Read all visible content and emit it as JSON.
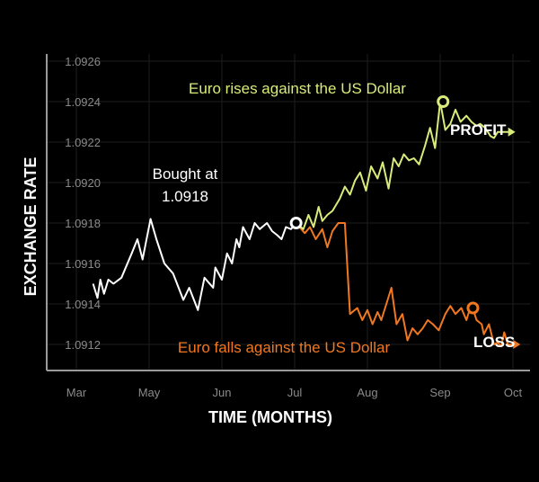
{
  "colors": {
    "background": "#000000",
    "base_line": "#ffffff",
    "profit_line": "#d9ec7a",
    "loss_line": "#f07820",
    "grid": "#1e1e1e",
    "axis": "#9a9a9a"
  },
  "chart_data": {
    "type": "line",
    "xlabel": "TIME (MONTHS)",
    "ylabel": "EXCHANGE RATE",
    "x_ticks": [
      "Mar",
      "May",
      "Jun",
      "Jul",
      "Aug",
      "Sep",
      "Oct"
    ],
    "y_ticks": [
      "1.0926",
      "1.0924",
      "1.0922",
      "1.0920",
      "1.0918",
      "1.0916",
      "1.0914",
      "1.0912"
    ],
    "ylim": [
      1.09108,
      1.0926
    ],
    "grid": true,
    "annotations": {
      "bought_line1": "Bought at",
      "bought_line2": "1.0918",
      "profit_caption": "Euro rises against the US Dollar",
      "loss_caption": "Euro falls against the US Dollar",
      "profit_end": "PROFIT",
      "loss_end": "LOSS"
    },
    "series": [
      {
        "key": "base",
        "x_index": [
          0.23,
          0.29,
          0.33,
          0.38,
          0.44,
          0.51,
          0.62,
          0.76,
          0.84,
          0.91,
          1.02,
          1.1,
          1.21,
          1.33,
          1.47,
          1.55,
          1.67,
          1.76,
          1.88,
          1.91,
          2.0,
          2.07,
          2.14,
          2.2,
          2.24,
          2.29,
          2.38,
          2.45,
          2.52,
          2.62,
          2.69,
          2.76,
          2.82,
          2.88,
          2.95,
          3.02
        ],
        "values": [
          1.0915,
          1.09143,
          1.09152,
          1.09145,
          1.09152,
          1.0915,
          1.09153,
          1.09165,
          1.09172,
          1.09162,
          1.09182,
          1.09172,
          1.0916,
          1.09155,
          1.09142,
          1.09148,
          1.09137,
          1.09153,
          1.09148,
          1.09158,
          1.09152,
          1.09165,
          1.0916,
          1.09172,
          1.09168,
          1.09178,
          1.09172,
          1.0918,
          1.09177,
          1.0918,
          1.09176,
          1.09174,
          1.09172,
          1.09178,
          1.09177,
          1.0918
        ]
      },
      {
        "key": "profit",
        "x_index": [
          3.02,
          3.12,
          3.19,
          3.26,
          3.33,
          3.38,
          3.45,
          3.52,
          3.62,
          3.69,
          3.76,
          3.83,
          3.9,
          3.98,
          4.05,
          4.14,
          4.21,
          4.29,
          4.36,
          4.43,
          4.5,
          4.57,
          4.64,
          4.71,
          4.79,
          4.86,
          4.93,
          5.0,
          5.07,
          5.14,
          5.21,
          5.28,
          5.36,
          5.43,
          5.5,
          5.55,
          5.62,
          5.69,
          5.74,
          5.79,
          5.86
        ],
        "values": [
          1.0918,
          1.09177,
          1.09184,
          1.09178,
          1.09188,
          1.09181,
          1.09184,
          1.09186,
          1.09192,
          1.09198,
          1.09194,
          1.09201,
          1.09205,
          1.09196,
          1.09208,
          1.09202,
          1.0921,
          1.09197,
          1.09212,
          1.09208,
          1.09214,
          1.09211,
          1.09212,
          1.09209,
          1.09218,
          1.09227,
          1.09217,
          1.0924,
          1.09226,
          1.09229,
          1.09236,
          1.0923,
          1.09233,
          1.0923,
          1.09228,
          1.09229,
          1.09227,
          1.09223,
          1.09222,
          1.09225,
          1.09225
        ]
      },
      {
        "key": "loss",
        "x_index": [
          3.02,
          3.14,
          3.21,
          3.29,
          3.38,
          3.45,
          3.52,
          3.6,
          3.69,
          3.76,
          3.86,
          3.93,
          4.0,
          4.07,
          4.14,
          4.19,
          4.26,
          4.33,
          4.4,
          4.48,
          4.55,
          4.62,
          4.69,
          4.76,
          4.83,
          4.9,
          4.98,
          5.07,
          5.14,
          5.21,
          5.29,
          5.36,
          5.43,
          5.5,
          5.57,
          5.6,
          5.67,
          5.74,
          5.79,
          5.84,
          5.88,
          5.93
        ],
        "values": [
          1.0918,
          1.09175,
          1.09178,
          1.09172,
          1.09177,
          1.09168,
          1.09176,
          1.0918,
          1.0918,
          1.09135,
          1.09138,
          1.09132,
          1.09137,
          1.0913,
          1.09136,
          1.09132,
          1.0914,
          1.09148,
          1.0913,
          1.09135,
          1.09122,
          1.09128,
          1.09125,
          1.09128,
          1.09132,
          1.0913,
          1.09127,
          1.09135,
          1.09139,
          1.09135,
          1.09138,
          1.09132,
          1.0914,
          1.09132,
          1.0913,
          1.09125,
          1.0913,
          1.0912,
          1.09121,
          1.09119,
          1.09126,
          1.0912
        ]
      }
    ],
    "markers": [
      {
        "key": "bought",
        "x_index": 3.02,
        "value": 1.0918,
        "color": "#ffffff"
      },
      {
        "key": "profit_point",
        "x_index": 5.04,
        "value": 1.0924,
        "color": "#d9ec7a"
      },
      {
        "key": "loss_point",
        "x_index": 5.45,
        "value": 1.09138,
        "color": "#f07820"
      }
    ]
  }
}
